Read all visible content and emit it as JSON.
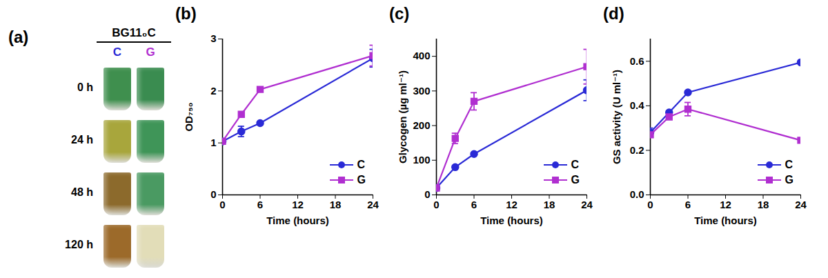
{
  "image_panel": {
    "panel_label": "(a)",
    "header": "BG11₀C",
    "columns": [
      {
        "label": "C",
        "color": "#2a2ad6"
      },
      {
        "label": "G",
        "color": "#b02fd0"
      }
    ],
    "rows": [
      {
        "label": "0 h",
        "colors": [
          "#3f8f4e",
          "#3a8c50"
        ]
      },
      {
        "label": "24 h",
        "colors": [
          "#a8a63c",
          "#3f9558"
        ]
      },
      {
        "label": "48 h",
        "colors": [
          "#8c6a2c",
          "#4a9a62"
        ]
      },
      {
        "label": "120 h",
        "colors": [
          "#9c6a2a",
          "#e2ddb8"
        ]
      }
    ]
  },
  "chart_data": [
    {
      "type": "line",
      "panel_label": "(b)",
      "x_label": "Time (hours)",
      "y_label": "OD₇₅₀",
      "x": [
        0,
        3,
        6,
        24
      ],
      "xlim": [
        0,
        24
      ],
      "xticks": [
        0,
        6,
        12,
        18,
        24
      ],
      "ylim": [
        0,
        3
      ],
      "yticks": [
        0,
        1,
        2,
        3
      ],
      "legend": "lower right",
      "series": [
        {
          "name": "C",
          "color": "#2a2ad6",
          "marker": "circle",
          "values": [
            1.03,
            1.22,
            1.38,
            2.63
          ],
          "errors": [
            null,
            0.1,
            null,
            0.17
          ]
        },
        {
          "name": "G",
          "color": "#b02fd0",
          "marker": "square",
          "values": [
            1.03,
            1.55,
            2.03,
            2.68
          ],
          "errors": [
            null,
            null,
            null,
            0.2
          ]
        }
      ]
    },
    {
      "type": "line",
      "panel_label": "(c)",
      "x_label": "Time (hours)",
      "y_label": "Glycogen (µg ml⁻¹)",
      "x": [
        0,
        3,
        6,
        24
      ],
      "xlim": [
        0,
        24
      ],
      "xticks": [
        0,
        6,
        12,
        18,
        24
      ],
      "ylim": [
        0,
        450
      ],
      "yticks": [
        0,
        100,
        200,
        300,
        400
      ],
      "legend": "lower right",
      "series": [
        {
          "name": "C",
          "color": "#2a2ad6",
          "marker": "circle",
          "values": [
            20,
            80,
            118,
            302
          ],
          "errors": [
            null,
            null,
            null,
            30
          ]
        },
        {
          "name": "G",
          "color": "#b02fd0",
          "marker": "square",
          "values": [
            20,
            163,
            270,
            370
          ],
          "errors": [
            null,
            15,
            25,
            50
          ]
        }
      ]
    },
    {
      "type": "line",
      "panel_label": "(d)",
      "x_label": "Time (hours)",
      "y_label": "GS activity (U ml⁻¹)",
      "x": [
        0,
        3,
        6,
        24
      ],
      "xlim": [
        0,
        24
      ],
      "xticks": [
        0,
        6,
        12,
        18,
        24
      ],
      "ylim": [
        0,
        0.7
      ],
      "yticks": [
        {
          "value": 0,
          "label": "0.0"
        },
        0.2,
        0.4,
        0.6
      ],
      "legend": "lower right",
      "series": [
        {
          "name": "C",
          "color": "#2a2ad6",
          "marker": "circle",
          "values": [
            0.28,
            0.37,
            0.46,
            0.595
          ],
          "errors": [
            0.02,
            null,
            null,
            null
          ]
        },
        {
          "name": "G",
          "color": "#b02fd0",
          "marker": "square",
          "values": [
            0.27,
            0.35,
            0.385,
            0.245
          ],
          "errors": [
            null,
            null,
            0.03,
            null
          ]
        }
      ]
    }
  ]
}
